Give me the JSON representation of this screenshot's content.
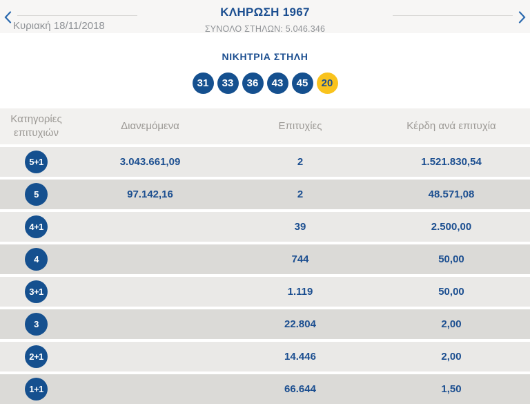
{
  "nav": {
    "date": "Κυριακή 18/11/2018",
    "title": "ΚΛΗΡΩΣΗ 1967",
    "total_columns": "ΣΥΝΟΛΟ ΣΤΗΛΩΝ: 5.046.346"
  },
  "colors": {
    "accent_blue": "#1b4e90",
    "ball_blue": "#15508f",
    "joker_yellow": "#f9c31d",
    "row_light": "#eae9e7",
    "row_dark": "#dbdad7",
    "header_gray_text": "#9b9894"
  },
  "winning": {
    "heading": "ΝΙΚΗΤΡΙΑ ΣΤΗΛΗ",
    "numbers": [
      "31",
      "33",
      "36",
      "43",
      "45"
    ],
    "joker_number": "20"
  },
  "table": {
    "headers": {
      "category": "Κατηγορίες επιτυχιών",
      "distributed": "Διανεμόμενα",
      "winners": "Επιτυχίες",
      "prize_per_win": "Κέρδη ανά επιτυχία"
    },
    "rows": [
      {
        "category": "5+1",
        "distributed": "3.043.661,09",
        "winners": "2",
        "prize": "1.521.830,54"
      },
      {
        "category": "5",
        "distributed": "97.142,16",
        "winners": "2",
        "prize": "48.571,08"
      },
      {
        "category": "4+1",
        "distributed": "",
        "winners": "39",
        "prize": "2.500,00"
      },
      {
        "category": "4",
        "distributed": "",
        "winners": "744",
        "prize": "50,00"
      },
      {
        "category": "3+1",
        "distributed": "",
        "winners": "1.119",
        "prize": "50,00"
      },
      {
        "category": "3",
        "distributed": "",
        "winners": "22.804",
        "prize": "2,00"
      },
      {
        "category": "2+1",
        "distributed": "",
        "winners": "14.446",
        "prize": "2,00"
      },
      {
        "category": "1+1",
        "distributed": "",
        "winners": "66.644",
        "prize": "1,50"
      }
    ]
  }
}
